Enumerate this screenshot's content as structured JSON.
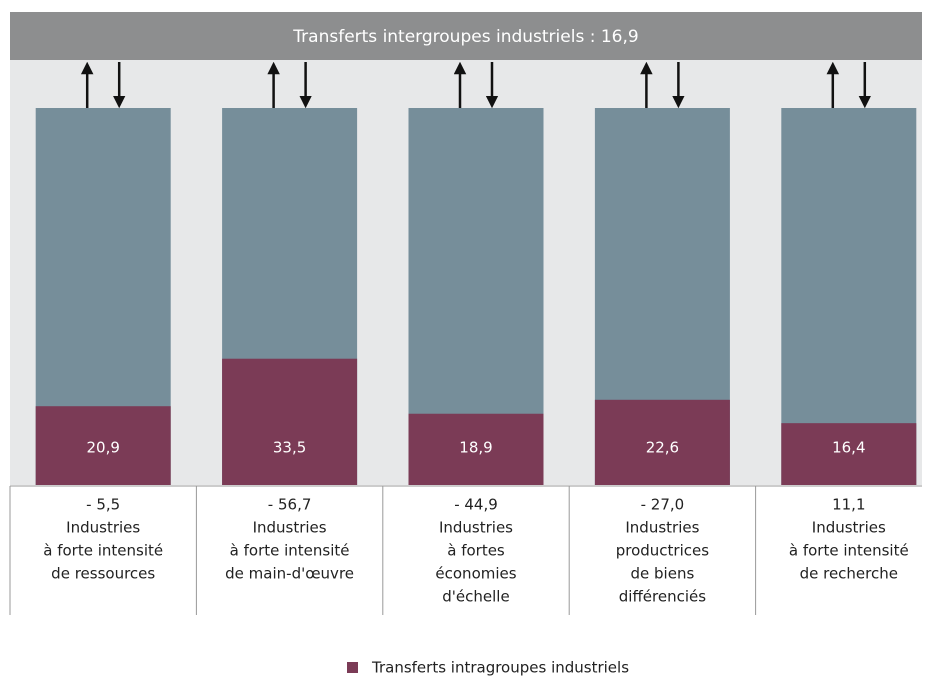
{
  "chart_data": {
    "type": "bar",
    "title": "Transferts intergroupes industriels : 16,9",
    "categories": [
      [
        "Industries",
        "à forte intensité",
        "de ressources"
      ],
      [
        "Industries",
        "à forte intensité",
        "de main-d'œuvre"
      ],
      [
        "Industries",
        "à fortes",
        "économies",
        "d'échelle"
      ],
      [
        "Industries",
        "productrices",
        "de biens",
        "différenciés"
      ],
      [
        "Industries",
        "à forte intensité",
        "de recherche"
      ]
    ],
    "balance_labels": [
      "- 5,5",
      "- 56,7",
      "- 44,9",
      "- 27,0",
      "11,1"
    ],
    "series": [
      {
        "name": "Transferts intragroupes industriels",
        "color": "#7b3b56",
        "values": [
          20.9,
          33.5,
          18.9,
          22.6,
          16.4
        ],
        "value_labels": [
          "20,9",
          "33,5",
          "18,9",
          "22,6",
          "16,4"
        ]
      }
    ],
    "ylim": [
      0,
      100
    ]
  }
}
